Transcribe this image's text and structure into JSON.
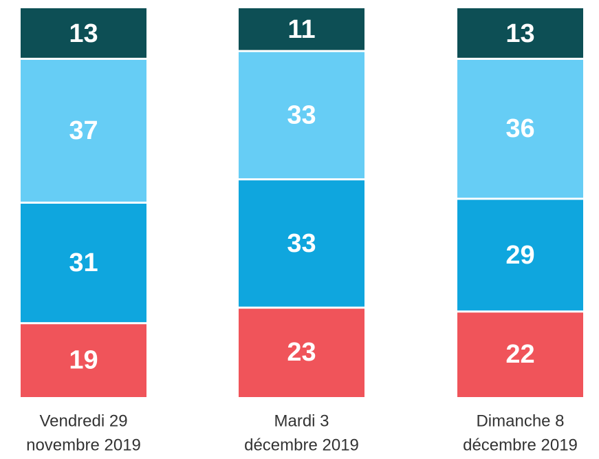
{
  "chart_data": {
    "type": "stacked_bar",
    "categories": [
      [
        "Vendredi 29",
        "novembre 2019"
      ],
      [
        "Mardi 3",
        "décembre 2019"
      ],
      [
        "Dimanche 8",
        "décembre 2019"
      ]
    ],
    "series": [
      {
        "color": "#f0545a",
        "values": [
          19,
          23,
          22
        ]
      },
      {
        "color": "#0fa6de",
        "values": [
          31,
          33,
          29
        ]
      },
      {
        "color": "#66cdf5",
        "values": [
          37,
          33,
          36
        ]
      },
      {
        "color": "#0d4f55",
        "values": [
          13,
          11,
          13
        ]
      }
    ],
    "ylim": [
      0,
      100
    ]
  }
}
